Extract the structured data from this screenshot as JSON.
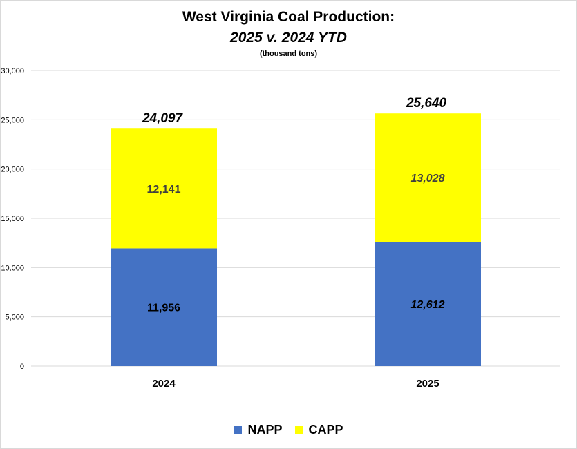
{
  "chart_data": {
    "type": "bar",
    "stacked": true,
    "title": "West Virginia Coal Production:",
    "subtitle": "2025 v. 2024 YTD",
    "unit_note": "(thousand tons)",
    "categories": [
      "2024",
      "2025"
    ],
    "series": [
      {
        "name": "NAPP",
        "values": [
          11956,
          12612
        ],
        "labels": [
          "11,956",
          "12,612"
        ],
        "color": "#4472c4"
      },
      {
        "name": "CAPP",
        "values": [
          12141,
          13028
        ],
        "labels": [
          "12,141",
          "13,028"
        ],
        "color": "#ffff00"
      }
    ],
    "totals": [
      24097,
      25640
    ],
    "total_labels": [
      "24,097",
      "25,640"
    ],
    "ylim": [
      0,
      30000
    ],
    "yticks": [
      0,
      5000,
      10000,
      15000,
      20000,
      25000,
      30000
    ],
    "ytick_labels": [
      "0",
      "5,000",
      "10,000",
      "15,000",
      "20,000",
      "25,000",
      "30,000"
    ],
    "grid": true,
    "legend_position": "bottom"
  }
}
